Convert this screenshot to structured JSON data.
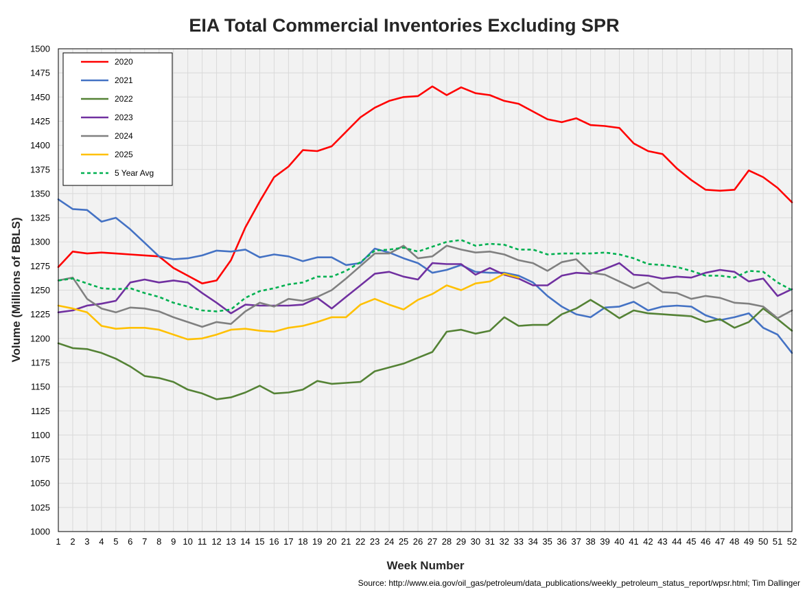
{
  "chart_data": {
    "type": "line",
    "title": "EIA Total Commercial Inventories Excluding SPR",
    "xlabel": "Week Number",
    "ylabel": "Volume (Millions of BBLS)",
    "source": "Source: http://www.eia.gov/oil_gas/petroleum/data_publications/weekly_petroleum_status_report/wpsr.html; Tim Dallinger",
    "ylim": [
      1000,
      1500
    ],
    "ytick_step": 25,
    "xlim": [
      1,
      52
    ],
    "grid": true,
    "legend_position": "top-left",
    "x": [
      1,
      2,
      3,
      4,
      5,
      6,
      7,
      8,
      9,
      10,
      11,
      12,
      13,
      14,
      15,
      16,
      17,
      18,
      19,
      20,
      21,
      22,
      23,
      24,
      25,
      26,
      27,
      28,
      29,
      30,
      31,
      32,
      33,
      34,
      35,
      36,
      37,
      38,
      39,
      40,
      41,
      42,
      43,
      44,
      45,
      46,
      47,
      48,
      49,
      50,
      51,
      52
    ],
    "series": [
      {
        "name": "2020",
        "color": "#ff0000",
        "dashed": false,
        "values": [
          1274,
          1290,
          1288,
          1289,
          1288,
          1287,
          1286,
          1285,
          1273,
          1265,
          1257,
          1260,
          1281,
          1315,
          1342,
          1367,
          1378,
          1395,
          1394,
          1399,
          1414,
          1429,
          1439,
          1446,
          1450,
          1451,
          1461,
          1452,
          1460,
          1454,
          1452,
          1446,
          1443,
          1435,
          1427,
          1424,
          1428,
          1421,
          1420,
          1418,
          1402,
          1394,
          1391,
          1376,
          1364,
          1354,
          1353,
          1354,
          1374,
          1367,
          1356,
          1341
        ]
      },
      {
        "name": "2021",
        "color": "#4472c4",
        "dashed": false,
        "values": [
          1344,
          1334,
          1333,
          1321,
          1325,
          1313,
          1299,
          1285,
          1282,
          1283,
          1286,
          1291,
          1290,
          1292,
          1284,
          1287,
          1285,
          1280,
          1284,
          1284,
          1276,
          1278,
          1293,
          1289,
          1283,
          1278,
          1268,
          1271,
          1276,
          1269,
          1268,
          1268,
          1265,
          1258,
          1244,
          1233,
          1225,
          1222,
          1232,
          1233,
          1238,
          1229,
          1233,
          1234,
          1233,
          1224,
          1219,
          1222,
          1226,
          1211,
          1204,
          1185
        ]
      },
      {
        "name": "2022",
        "color": "#548235",
        "dashed": false,
        "values": [
          1195,
          1190,
          1189,
          1185,
          1179,
          1171,
          1161,
          1159,
          1155,
          1147,
          1143,
          1137,
          1139,
          1144,
          1151,
          1143,
          1144,
          1147,
          1156,
          1153,
          1154,
          1155,
          1166,
          1170,
          1174,
          1180,
          1186,
          1207,
          1209,
          1205,
          1208,
          1222,
          1213,
          1214,
          1214,
          1225,
          1231,
          1240,
          1231,
          1221,
          1229,
          1226,
          1225,
          1224,
          1223,
          1217,
          1220,
          1211,
          1217,
          1231,
          1220,
          1208
        ]
      },
      {
        "name": "2023",
        "color": "#7030a0",
        "dashed": false,
        "values": [
          1227,
          1229,
          1234,
          1236,
          1239,
          1258,
          1261,
          1258,
          1260,
          1258,
          1247,
          1237,
          1226,
          1235,
          1234,
          1234,
          1234,
          1235,
          1242,
          1231,
          1243,
          1255,
          1267,
          1269,
          1264,
          1261,
          1278,
          1277,
          1277,
          1266,
          1273,
          1266,
          1262,
          1255,
          1255,
          1265,
          1268,
          1267,
          1272,
          1278,
          1266,
          1265,
          1262,
          1264,
          1263,
          1268,
          1271,
          1269,
          1259,
          1262,
          1244,
          1251
        ]
      },
      {
        "name": "2024",
        "color": "#808080",
        "dashed": false,
        "values": [
          1260,
          1263,
          1241,
          1231,
          1227,
          1232,
          1231,
          1228,
          1222,
          1217,
          1212,
          1217,
          1215,
          1228,
          1237,
          1233,
          1241,
          1239,
          1243,
          1250,
          1262,
          1275,
          1288,
          1288,
          1296,
          1283,
          1285,
          1296,
          1292,
          1289,
          1290,
          1287,
          1281,
          1278,
          1270,
          1279,
          1282,
          1268,
          1266,
          1259,
          1252,
          1258,
          1248,
          1247,
          1241,
          1244,
          1242,
          1237,
          1236,
          1233,
          1221,
          1229
        ]
      },
      {
        "name": "2025",
        "color": "#ffc000",
        "dashed": false,
        "values": [
          1234,
          1231,
          1227,
          1213,
          1210,
          1211,
          1211,
          1209,
          1204,
          1199,
          1200,
          1204,
          1209,
          1210,
          1208,
          1207,
          1211,
          1213,
          1217,
          1222,
          1222,
          1235,
          1241,
          1235,
          1230,
          1240,
          1246,
          1255,
          1250,
          1257,
          1259,
          1267,
          1263,
          null,
          null,
          null,
          null,
          null,
          null,
          null,
          null,
          null,
          null,
          null,
          null,
          null,
          null,
          null,
          null,
          null,
          null,
          null
        ]
      },
      {
        "name": "5 Year Avg",
        "color": "#00b050",
        "dashed": true,
        "values": [
          1260,
          1262,
          1257,
          1252,
          1251,
          1252,
          1247,
          1243,
          1237,
          1233,
          1229,
          1228,
          1230,
          1242,
          1249,
          1252,
          1256,
          1258,
          1264,
          1264,
          1270,
          1279,
          1291,
          1292,
          1294,
          1290,
          1295,
          1300,
          1302,
          1296,
          1298,
          1297,
          1292,
          1292,
          1287,
          1288,
          1288,
          1288,
          1289,
          1287,
          1283,
          1277,
          1276,
          1274,
          1270,
          1265,
          1265,
          1263,
          1270,
          1269,
          1258,
          1250
        ]
      }
    ]
  }
}
